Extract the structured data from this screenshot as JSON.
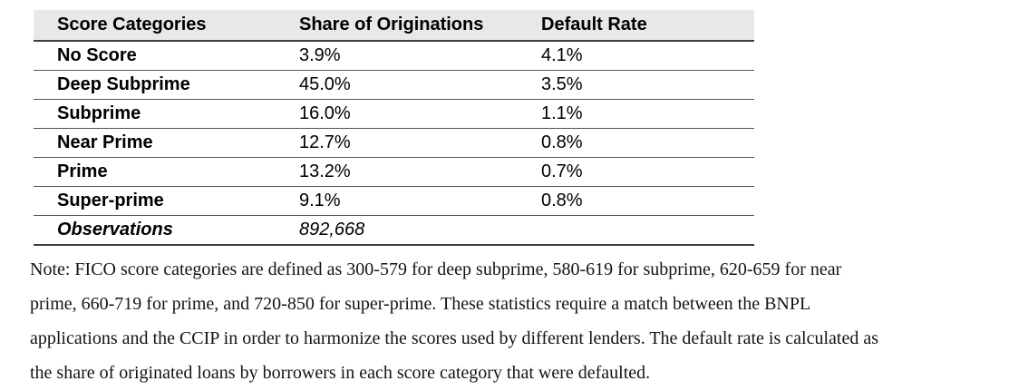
{
  "table": {
    "columns": [
      "Score Categories",
      "Share of Originations",
      "Default Rate"
    ],
    "rows": [
      {
        "category": "No Score",
        "share": "3.9%",
        "default_rate": "4.1%"
      },
      {
        "category": "Deep Subprime",
        "share": "45.0%",
        "default_rate": "3.5%"
      },
      {
        "category": "Subprime",
        "share": "16.0%",
        "default_rate": "1.1%"
      },
      {
        "category": "Near Prime",
        "share": "12.7%",
        "default_rate": "0.8%"
      },
      {
        "category": "Prime",
        "share": "13.2%",
        "default_rate": "0.7%"
      },
      {
        "category": "Super-prime",
        "share": "9.1%",
        "default_rate": "0.8%"
      }
    ],
    "footer_row": {
      "label": "Observations",
      "value": "892,668"
    }
  },
  "note": {
    "lines": [
      "Note: FICO score categories are defined as 300-579 for deep subprime, 580-619 for subprime, 620-659 for near",
      "prime, 660-719 for prime, and 720-850 for super-prime. These statistics require a match between the BNPL",
      "applications and the CCIP in order to harmonize the scores used by different lenders. The default rate is calculated as",
      "the share of originated loans by borrowers in each score category that were defaulted."
    ]
  },
  "colors": {
    "header_background": "#e8e8e8",
    "rule_strong": "#3f3f3f",
    "rule_light": "#555555",
    "text": "#000000",
    "page_background": "#ffffff"
  }
}
